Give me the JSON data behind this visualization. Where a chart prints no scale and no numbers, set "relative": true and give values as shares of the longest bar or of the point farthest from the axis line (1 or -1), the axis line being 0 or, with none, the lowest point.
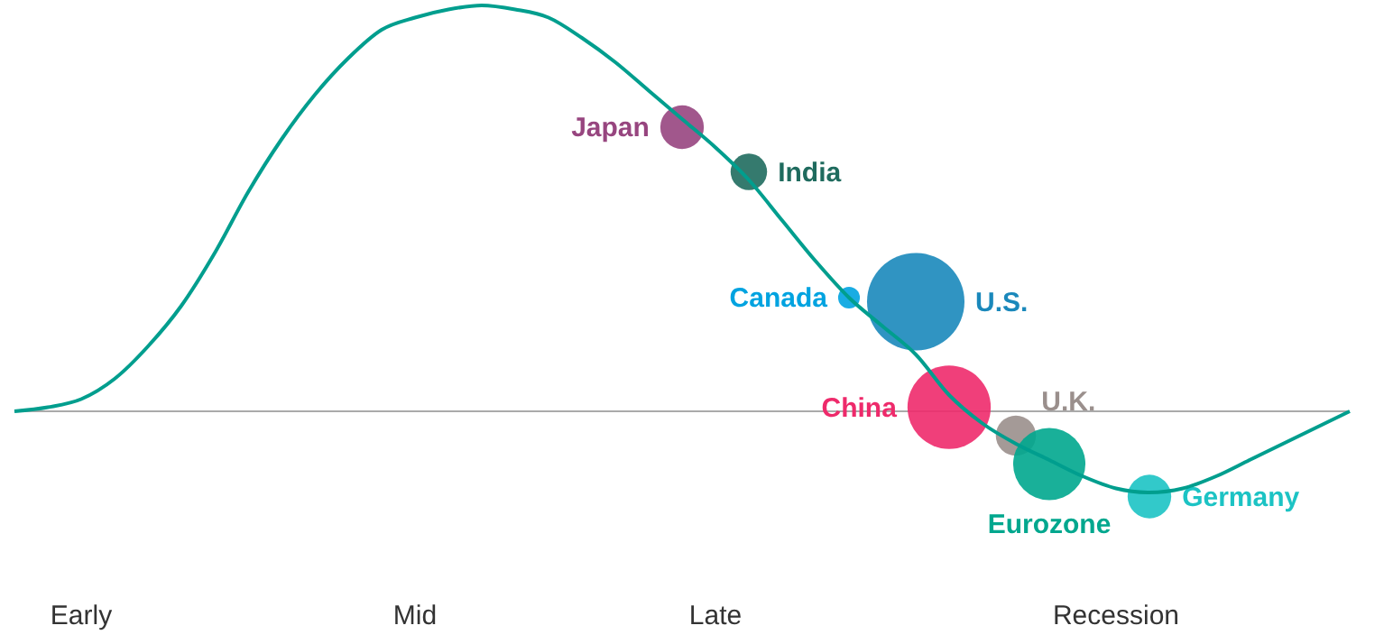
{
  "chart_data": {
    "type": "line",
    "relative": true,
    "categories": [
      null,
      null,
      "Early",
      null,
      null,
      null,
      null,
      null,
      null,
      null,
      null,
      null,
      "Mid",
      null,
      null,
      null,
      null,
      null,
      null,
      null,
      null,
      "Late",
      null,
      null,
      null,
      null,
      null,
      null,
      null,
      null,
      null,
      null,
      null,
      "Recession",
      null,
      null,
      null,
      null,
      null,
      null,
      null
    ],
    "series": [
      {
        "color": "#009e8e",
        "marker": "none",
        "values": [
          0,
          0.01,
          0.03,
          0.08,
          0.16,
          0.26,
          0.39,
          0.54,
          0.67,
          0.78,
          0.87,
          0.94,
          0.97,
          0.99,
          1,
          0.99,
          0.97,
          0.92,
          0.86,
          0.79,
          0.72,
          0.65,
          0.57,
          0.47,
          0.37,
          0.28,
          0.21,
          0.14,
          0.04,
          -0.03,
          -0.08,
          -0.12,
          -0.16,
          -0.19,
          -0.2,
          -0.19,
          -0.16,
          -0.12,
          -0.08,
          -0.04,
          0
        ]
      },
      {
        "type": "bubble",
        "name": "Japan",
        "color": "#97457f",
        "values": [
          null,
          null,
          null,
          null,
          null,
          null,
          null,
          null,
          null,
          null,
          null,
          null,
          null,
          null,
          null,
          null,
          null,
          null,
          null,
          null,
          0.7,
          null,
          null,
          null,
          null,
          null,
          null,
          null,
          null,
          null,
          null,
          null,
          null,
          null,
          null,
          null,
          null,
          null,
          null,
          null,
          null
        ],
        "sizes": [
          null,
          null,
          null,
          null,
          null,
          null,
          null,
          null,
          null,
          null,
          null,
          null,
          null,
          null,
          null,
          null,
          null,
          null,
          null,
          null,
          0.2,
          null,
          null,
          null,
          null,
          null,
          null,
          null,
          null,
          null,
          null,
          null,
          null,
          null,
          null,
          null,
          null,
          null,
          null,
          null,
          null
        ]
      },
      {
        "type": "bubble",
        "name": "India",
        "color": "#1f6b5e",
        "values": [
          null,
          null,
          null,
          null,
          null,
          null,
          null,
          null,
          null,
          null,
          null,
          null,
          null,
          null,
          null,
          null,
          null,
          null,
          null,
          null,
          null,
          null,
          0.59,
          null,
          null,
          null,
          null,
          null,
          null,
          null,
          null,
          null,
          null,
          null,
          null,
          null,
          null,
          null,
          null,
          null,
          null
        ],
        "sizes": [
          null,
          null,
          null,
          null,
          null,
          null,
          null,
          null,
          null,
          null,
          null,
          null,
          null,
          null,
          null,
          null,
          null,
          null,
          null,
          null,
          null,
          null,
          0.14,
          null,
          null,
          null,
          null,
          null,
          null,
          null,
          null,
          null,
          null,
          null,
          null,
          null,
          null,
          null,
          null,
          null,
          null
        ]
      },
      {
        "type": "bubble",
        "name": "Canada",
        "color": "#00a3e0",
        "values": [
          null,
          null,
          null,
          null,
          null,
          null,
          null,
          null,
          null,
          null,
          null,
          null,
          null,
          null,
          null,
          null,
          null,
          null,
          null,
          null,
          null,
          null,
          null,
          null,
          null,
          0.28,
          null,
          null,
          null,
          null,
          null,
          null,
          null,
          null,
          null,
          null,
          null,
          null,
          null,
          null,
          null
        ],
        "sizes": [
          null,
          null,
          null,
          null,
          null,
          null,
          null,
          null,
          null,
          null,
          null,
          null,
          null,
          null,
          null,
          null,
          null,
          null,
          null,
          null,
          null,
          null,
          null,
          null,
          null,
          0.05,
          null,
          null,
          null,
          null,
          null,
          null,
          null,
          null,
          null,
          null,
          null,
          null,
          null,
          null,
          null
        ]
      },
      {
        "type": "bubble",
        "name": "U.S.",
        "color": "#1a88bb",
        "values": [
          null,
          null,
          null,
          null,
          null,
          null,
          null,
          null,
          null,
          null,
          null,
          null,
          null,
          null,
          null,
          null,
          null,
          null,
          null,
          null,
          null,
          null,
          null,
          null,
          null,
          null,
          null,
          0.27,
          null,
          null,
          null,
          null,
          null,
          null,
          null,
          null,
          null,
          null,
          null,
          null,
          null
        ],
        "sizes": [
          null,
          null,
          null,
          null,
          null,
          null,
          null,
          null,
          null,
          null,
          null,
          null,
          null,
          null,
          null,
          null,
          null,
          null,
          null,
          null,
          null,
          null,
          null,
          null,
          null,
          null,
          null,
          1,
          null,
          null,
          null,
          null,
          null,
          null,
          null,
          null,
          null,
          null,
          null,
          null,
          null
        ]
      },
      {
        "type": "bubble",
        "name": "China",
        "color": "#ee2a6b",
        "values": [
          null,
          null,
          null,
          null,
          null,
          null,
          null,
          null,
          null,
          null,
          null,
          null,
          null,
          null,
          null,
          null,
          null,
          null,
          null,
          null,
          null,
          null,
          null,
          null,
          null,
          null,
          null,
          null,
          0.01,
          null,
          null,
          null,
          null,
          null,
          null,
          null,
          null,
          null,
          null,
          null,
          null
        ],
        "sizes": [
          null,
          null,
          null,
          null,
          null,
          null,
          null,
          null,
          null,
          null,
          null,
          null,
          null,
          null,
          null,
          null,
          null,
          null,
          null,
          null,
          null,
          null,
          null,
          null,
          null,
          null,
          null,
          null,
          0.73,
          null,
          null,
          null,
          null,
          null,
          null,
          null,
          null,
          null,
          null,
          null,
          null
        ]
      },
      {
        "type": "bubble",
        "name": "U.K.",
        "color": "#9a8f8c",
        "values": [
          null,
          null,
          null,
          null,
          null,
          null,
          null,
          null,
          null,
          null,
          null,
          null,
          null,
          null,
          null,
          null,
          null,
          null,
          null,
          null,
          null,
          null,
          null,
          null,
          null,
          null,
          null,
          null,
          null,
          null,
          -0.06,
          null,
          null,
          null,
          null,
          null,
          null,
          null,
          null,
          null,
          null
        ],
        "sizes": [
          null,
          null,
          null,
          null,
          null,
          null,
          null,
          null,
          null,
          null,
          null,
          null,
          null,
          null,
          null,
          null,
          null,
          null,
          null,
          null,
          null,
          null,
          null,
          null,
          null,
          null,
          null,
          null,
          null,
          null,
          0.17,
          null,
          null,
          null,
          null,
          null,
          null,
          null,
          null,
          null,
          null
        ]
      },
      {
        "type": "bubble",
        "name": "Eurozone",
        "color": "#00a78e",
        "values": [
          null,
          null,
          null,
          null,
          null,
          null,
          null,
          null,
          null,
          null,
          null,
          null,
          null,
          null,
          null,
          null,
          null,
          null,
          null,
          null,
          null,
          null,
          null,
          null,
          null,
          null,
          null,
          null,
          null,
          null,
          null,
          -0.13,
          null,
          null,
          null,
          null,
          null,
          null,
          null,
          null,
          null
        ],
        "sizes": [
          null,
          null,
          null,
          null,
          null,
          null,
          null,
          null,
          null,
          null,
          null,
          null,
          null,
          null,
          null,
          null,
          null,
          null,
          null,
          null,
          null,
          null,
          null,
          null,
          null,
          null,
          null,
          null,
          null,
          null,
          null,
          0.55,
          null,
          null,
          null,
          null,
          null,
          null,
          null,
          null,
          null
        ]
      },
      {
        "type": "bubble",
        "name": "Germany",
        "color": "#1cc3c4",
        "values": [
          null,
          null,
          null,
          null,
          null,
          null,
          null,
          null,
          null,
          null,
          null,
          null,
          null,
          null,
          null,
          null,
          null,
          null,
          null,
          null,
          null,
          null,
          null,
          null,
          null,
          null,
          null,
          null,
          null,
          null,
          null,
          null,
          null,
          null,
          -0.21,
          null,
          null,
          null,
          null,
          null,
          null
        ],
        "sizes": [
          null,
          null,
          null,
          null,
          null,
          null,
          null,
          null,
          null,
          null,
          null,
          null,
          null,
          null,
          null,
          null,
          null,
          null,
          null,
          null,
          null,
          null,
          null,
          null,
          null,
          null,
          null,
          null,
          null,
          null,
          null,
          null,
          null,
          null,
          0.2,
          null,
          null,
          null,
          null,
          null,
          null
        ]
      }
    ]
  }
}
